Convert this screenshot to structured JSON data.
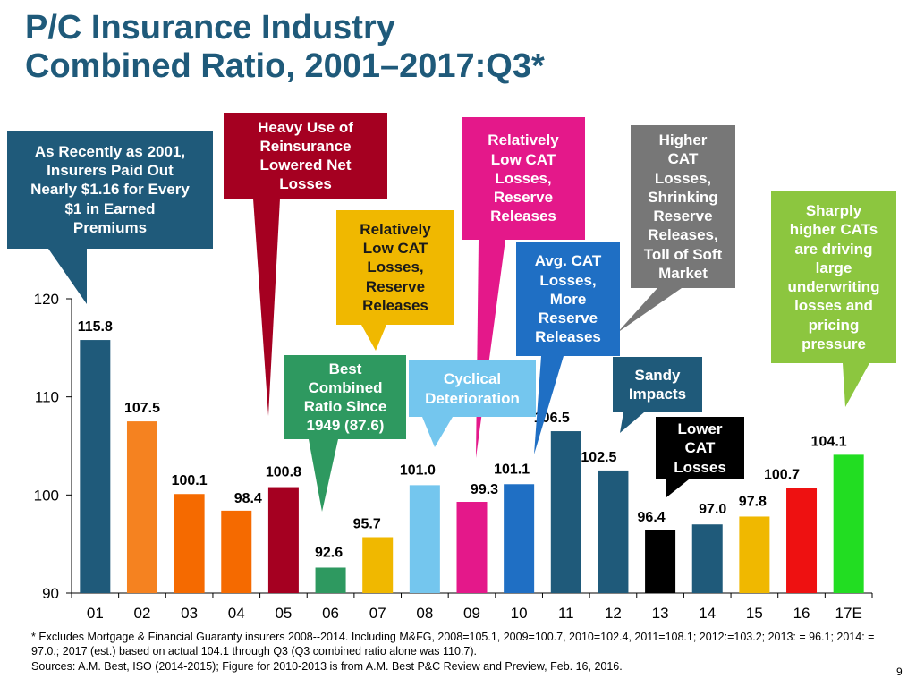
{
  "title_lines": [
    "P/C Insurance Industry",
    "Combined Ratio, 2001–2017:Q3*"
  ],
  "chart_data": {
    "type": "bar",
    "categories": [
      "01",
      "02",
      "03",
      "04",
      "05",
      "06",
      "07",
      "08",
      "09",
      "10",
      "11",
      "12",
      "13",
      "14",
      "15",
      "16",
      "17E"
    ],
    "values": [
      115.8,
      107.5,
      100.1,
      98.4,
      100.8,
      92.6,
      95.7,
      101.0,
      99.3,
      101.1,
      106.5,
      102.5,
      96.4,
      97.0,
      97.8,
      100.7,
      104.1
    ],
    "value_labels": [
      "115.8",
      "107.5",
      "100.1",
      "98.4",
      "100.8",
      "92.6",
      "95.7",
      "101.0",
      "99.3",
      "101.1",
      "106.5",
      "102.5",
      "96.4",
      "97.0",
      "97.8",
      "100.7",
      "104.1"
    ],
    "colors": [
      "#1f5a7a",
      "#f58220",
      "#f56a00",
      "#f56a00",
      "#a50021",
      "#2e9960",
      "#f0b800",
      "#74c6ee",
      "#e4188a",
      "#1f6fc4",
      "#1f5a7a",
      "#1f5a7a",
      "#000000",
      "#1f5a7a",
      "#f0b800",
      "#ee1111",
      "#22dd22"
    ],
    "y_ticks": [
      90,
      100,
      110,
      120
    ],
    "ylim": [
      90,
      120
    ],
    "grid": false
  },
  "callouts": [
    {
      "id": "2001",
      "lines": [
        "As Recently as 2001,",
        "Insurers Paid Out",
        "Nearly $1.16 for Every",
        "$1 in Earned",
        "Premiums"
      ],
      "color": "#1f5a7a",
      "text_color": "#ffffff"
    },
    {
      "id": "reinsurance",
      "lines": [
        "Heavy Use of",
        "Reinsurance",
        "Lowered Net",
        "Losses"
      ],
      "color": "#a50021",
      "text_color": "#ffffff"
    },
    {
      "id": "low-cat-2006",
      "lines": [
        "Relatively",
        "Low CAT",
        "Losses,",
        "Reserve",
        "Releases"
      ],
      "color": "#f0b800",
      "text_color": "#1a1a1a"
    },
    {
      "id": "best-combined",
      "lines": [
        "Best",
        "Combined",
        "Ratio Since",
        "1949 (87.6)"
      ],
      "color": "#2e9960",
      "text_color": "#ffffff"
    },
    {
      "id": "low-cat-2009",
      "lines": [
        "Relatively",
        "Low CAT",
        "Losses,",
        "Reserve",
        "Releases"
      ],
      "color": "#e4188a",
      "text_color": "#ffffff"
    },
    {
      "id": "cyclical",
      "lines": [
        "Cyclical",
        "Deterioration"
      ],
      "color": "#74c6ee",
      "text_color": "#ffffff"
    },
    {
      "id": "avg-cat",
      "lines": [
        "Avg. CAT",
        "Losses,",
        "More",
        "Reserve",
        "Releases"
      ],
      "color": "#1f6fc4",
      "text_color": "#ffffff"
    },
    {
      "id": "higher-cat",
      "lines": [
        "Higher",
        "CAT",
        "Losses,",
        "Shrinking",
        "Reserve",
        "Releases,",
        "Toll of Soft",
        "Market"
      ],
      "color": "#777777",
      "text_color": "#ffffff"
    },
    {
      "id": "sandy",
      "lines": [
        "Sandy",
        "Impacts"
      ],
      "color": "#1f5a7a",
      "text_color": "#ffffff"
    },
    {
      "id": "lower-cat",
      "lines": [
        "Lower",
        "CAT",
        "Losses"
      ],
      "color": "#000000",
      "text_color": "#ffffff"
    },
    {
      "id": "sharply-higher",
      "lines": [
        "Sharply",
        "higher CATs",
        "are driving",
        "large",
        "underwriting",
        "losses and",
        "pricing",
        "pressure"
      ],
      "color": "#8cc63f",
      "text_color": "#ffffff"
    }
  ],
  "footnote": "* Excludes Mortgage & Financial Guaranty insurers 2008--2014. Including M&FG, 2008=105.1, 2009=100.7, 2010=102.4, 2011=108.1; 2012:=103.2; 2013: = 96.1; 2014: = 97.0.; 2017 (est.) based on actual 104.1 through Q3 (Q3 combined ratio alone was 110.7).",
  "sources": "Sources: A.M. Best, ISO (2014-2015); Figure for 2010-2013 is from A.M. Best P&C Review and Preview, Feb. 16, 2016.",
  "page_number": "9"
}
